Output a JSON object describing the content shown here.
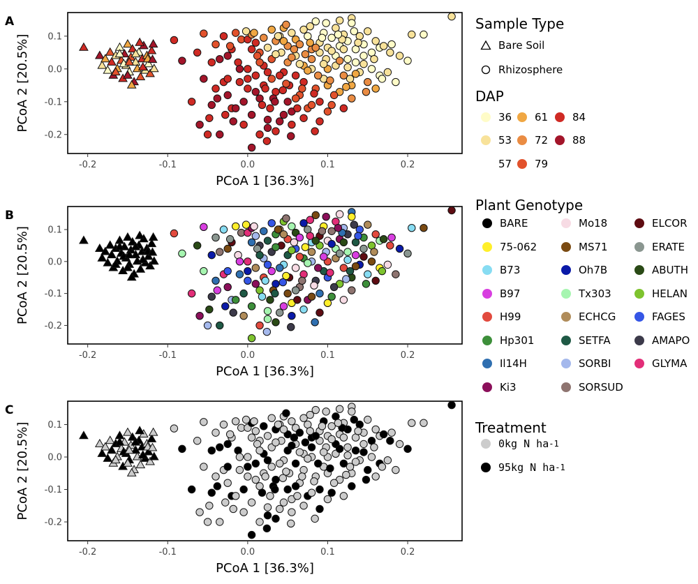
{
  "panels": [
    {
      "letter": "A",
      "coloring": "dap"
    },
    {
      "letter": "B",
      "coloring": "genotype"
    },
    {
      "letter": "C",
      "coloring": "treatment"
    }
  ],
  "legends": {
    "sample_type": {
      "title": "Sample Type",
      "items": [
        {
          "label": "Bare Soil",
          "shape": "triangle"
        },
        {
          "label": "Rhizosphere",
          "shape": "circle"
        }
      ]
    },
    "dap": {
      "title": "DAP",
      "items": [
        {
          "label": "36",
          "color": "#fffcc8"
        },
        {
          "label": "53",
          "color": "#f8e29a"
        },
        {
          "label": "57",
          "color": "#ffffff"
        },
        {
          "label": "61",
          "color": "#f0a743"
        },
        {
          "label": "72",
          "color": "#ea8c43"
        },
        {
          "label": "79",
          "color": "#e2522c"
        },
        {
          "label": "84",
          "color": "#cf2a24"
        },
        {
          "label": "88",
          "color": "#a3152a"
        }
      ]
    },
    "genotype": {
      "title": "Plant Genotype",
      "items": [
        {
          "label": "BARE",
          "color": "#000000"
        },
        {
          "label": "75-062",
          "color": "#ffef2a"
        },
        {
          "label": "B73",
          "color": "#87dcf2"
        },
        {
          "label": "B97",
          "color": "#d83ee0"
        },
        {
          "label": "H99",
          "color": "#e24a3e"
        },
        {
          "label": "Hp301",
          "color": "#3d8f3a"
        },
        {
          "label": "Il14H",
          "color": "#2f6fb0"
        },
        {
          "label": "Ki3",
          "color": "#8b0f5a"
        },
        {
          "label": "Mo18",
          "color": "#f7dbe4"
        },
        {
          "label": "MS71",
          "color": "#7a4a12"
        },
        {
          "label": "Oh7B",
          "color": "#0a1aa8"
        },
        {
          "label": "Tx303",
          "color": "#a6f5b0"
        },
        {
          "label": "ECHCG",
          "color": "#b08c5a"
        },
        {
          "label": "SETFA",
          "color": "#1f5945"
        },
        {
          "label": "SORBI",
          "color": "#a4b8ec"
        },
        {
          "label": "SORSUD",
          "color": "#8e7470"
        },
        {
          "label": "ELCOR",
          "color": "#5e0c12"
        },
        {
          "label": "ERATE",
          "color": "#8a9690"
        },
        {
          "label": "ABUTH",
          "color": "#2a4a16"
        },
        {
          "label": "HELAN",
          "color": "#7ec32e"
        },
        {
          "label": "FAGES",
          "color": "#3556e6"
        },
        {
          "label": "AMAPO",
          "color": "#3c3a4a"
        },
        {
          "label": "GLYMA",
          "color": "#e22e78"
        }
      ]
    },
    "treatment": {
      "title": "Treatment",
      "items": [
        {
          "label_prefix": "0kg N ha",
          "sup": "-1",
          "color": "#cccccc"
        },
        {
          "label_prefix": "95kg N ha",
          "sup": "-1",
          "color": "#000000"
        }
      ]
    }
  },
  "chart_data": {
    "type": "scatter",
    "xlabel": "PCoA 1 [36.3%]",
    "ylabel": "PCoA 2 [20.5%]",
    "xlim": [
      -0.225,
      0.268
    ],
    "ylim": [
      -0.258,
      0.172
    ],
    "xticks": [
      -0.2,
      -0.1,
      0.0,
      0.1,
      0.2
    ],
    "xtick_labels": [
      "-0.2",
      "-0.1",
      "0.0",
      "0.1",
      "0.2"
    ],
    "yticks": [
      -0.2,
      -0.1,
      0.0,
      0.1
    ],
    "ytick_labels": [
      "-0.2",
      "-0.1",
      "0.0",
      "0.1"
    ],
    "bare_soil_points": [
      [
        -0.205,
        0.065
      ],
      [
        -0.185,
        0.04
      ],
      [
        -0.182,
        0.01
      ],
      [
        -0.178,
        0.03
      ],
      [
        -0.175,
        -0.005
      ],
      [
        -0.172,
        0.05
      ],
      [
        -0.17,
        0.02
      ],
      [
        -0.168,
        -0.02
      ],
      [
        -0.165,
        0.04
      ],
      [
        -0.163,
        0.0
      ],
      [
        -0.16,
        0.065
      ],
      [
        -0.158,
        0.025
      ],
      [
        -0.156,
        -0.03
      ],
      [
        -0.154,
        0.045
      ],
      [
        -0.152,
        0.01
      ],
      [
        -0.15,
        0.075
      ],
      [
        -0.148,
        -0.01
      ],
      [
        -0.146,
        0.035
      ],
      [
        -0.144,
        0.06
      ],
      [
        -0.142,
        -0.04
      ],
      [
        -0.14,
        0.02
      ],
      [
        -0.138,
        0.0
      ],
      [
        -0.136,
        0.05
      ],
      [
        -0.134,
        -0.025
      ],
      [
        -0.132,
        0.03
      ],
      [
        -0.13,
        0.07
      ],
      [
        -0.128,
        -0.005
      ],
      [
        -0.126,
        0.04
      ],
      [
        -0.124,
        0.015
      ],
      [
        -0.122,
        -0.015
      ],
      [
        -0.12,
        0.055
      ],
      [
        -0.118,
        0.075
      ],
      [
        -0.117,
        0.0
      ],
      [
        -0.145,
        -0.05
      ],
      [
        -0.155,
        0.015
      ],
      [
        -0.165,
        -0.01
      ],
      [
        -0.135,
        0.08
      ],
      [
        -0.15,
        -0.02
      ],
      [
        -0.14,
        0.045
      ],
      [
        -0.125,
        0.03
      ],
      [
        -0.16,
        0.045
      ],
      [
        -0.148,
        0.02
      ],
      [
        -0.131,
        0.005
      ],
      [
        -0.119,
        0.028
      ]
    ],
    "rhizosphere_points": [
      [
        -0.092,
        0.088
      ],
      [
        -0.082,
        0.025
      ],
      [
        -0.063,
        0.05
      ],
      [
        -0.055,
        0.108
      ],
      [
        -0.045,
        0.02
      ],
      [
        -0.04,
        0.075
      ],
      [
        -0.03,
        0.1
      ],
      [
        -0.025,
        0.04
      ],
      [
        -0.02,
        0.06
      ],
      [
        -0.015,
        0.11
      ],
      [
        -0.012,
        0.02
      ],
      [
        -0.008,
        0.09
      ],
      [
        0.0,
        0.09
      ],
      [
        0.005,
        0.105
      ],
      [
        0.01,
        0.08
      ],
      [
        0.015,
        0.05
      ],
      [
        0.02,
        0.095
      ],
      [
        0.025,
        0.065
      ],
      [
        0.03,
        0.12
      ],
      [
        0.035,
        0.085
      ],
      [
        0.04,
        0.1
      ],
      [
        0.045,
        0.125
      ],
      [
        0.05,
        0.07
      ],
      [
        0.055,
        0.11
      ],
      [
        0.06,
        0.09
      ],
      [
        0.065,
        0.075
      ],
      [
        0.07,
        0.12
      ],
      [
        0.075,
        0.1
      ],
      [
        0.08,
        0.06
      ],
      [
        0.085,
        0.145
      ],
      [
        0.09,
        0.08
      ],
      [
        0.095,
        0.11
      ],
      [
        0.1,
        0.065
      ],
      [
        0.105,
        0.095
      ],
      [
        0.11,
        0.125
      ],
      [
        0.115,
        0.07
      ],
      [
        0.12,
        0.105
      ],
      [
        0.125,
        0.085
      ],
      [
        0.13,
        0.155
      ],
      [
        0.135,
        0.06
      ],
      [
        0.14,
        0.1
      ],
      [
        0.145,
        0.075
      ],
      [
        0.15,
        0.115
      ],
      [
        0.155,
        0.05
      ],
      [
        0.16,
        0.085
      ],
      [
        0.165,
        0.065
      ],
      [
        0.17,
        0.07
      ],
      [
        0.18,
        0.075
      ],
      [
        0.19,
        0.04
      ],
      [
        0.2,
        0.025
      ],
      [
        0.205,
        0.105
      ],
      [
        0.22,
        0.105
      ],
      [
        0.255,
        0.16
      ],
      [
        0.13,
        0.14
      ],
      [
        0.115,
        0.148
      ],
      [
        -0.035,
        0.03
      ],
      [
        -0.03,
        -0.04
      ],
      [
        -0.025,
        -0.08
      ],
      [
        -0.02,
        -0.12
      ],
      [
        -0.018,
        -0.16
      ],
      [
        -0.01,
        -0.04
      ],
      [
        -0.005,
        -0.1
      ],
      [
        0.0,
        -0.06
      ],
      [
        0.005,
        -0.14
      ],
      [
        0.01,
        -0.02
      ],
      [
        0.015,
        -0.09
      ],
      [
        0.02,
        -0.05
      ],
      [
        0.025,
        -0.18
      ],
      [
        0.028,
        -0.12
      ],
      [
        0.03,
        -0.03
      ],
      [
        0.035,
        -0.07
      ],
      [
        0.04,
        -0.16
      ],
      [
        0.045,
        -0.01
      ],
      [
        0.05,
        -0.1
      ],
      [
        0.052,
        -0.05
      ],
      [
        0.055,
        -0.13
      ],
      [
        0.06,
        -0.02
      ],
      [
        0.065,
        -0.08
      ],
      [
        0.07,
        -0.04
      ],
      [
        0.075,
        -0.12
      ],
      [
        0.08,
        0.0
      ],
      [
        0.085,
        -0.06
      ],
      [
        0.09,
        -0.1
      ],
      [
        0.095,
        -0.03
      ],
      [
        0.1,
        -0.05
      ],
      [
        0.105,
        -0.11
      ],
      [
        0.11,
        0.01
      ],
      [
        0.115,
        -0.07
      ],
      [
        0.12,
        -0.02
      ],
      [
        0.125,
        0.03
      ],
      [
        0.13,
        -0.05
      ],
      [
        0.135,
        0.02
      ],
      [
        0.14,
        -0.01
      ],
      [
        0.145,
        0.04
      ],
      [
        0.15,
        -0.04
      ],
      [
        0.155,
        0.0
      ],
      [
        0.16,
        -0.06
      ],
      [
        0.165,
        -0.02
      ],
      [
        0.175,
        -0.01
      ],
      [
        0.185,
        -0.04
      ],
      [
        -0.07,
        -0.1
      ],
      [
        -0.06,
        -0.17
      ],
      [
        -0.05,
        -0.2
      ],
      [
        -0.045,
        -0.11
      ],
      [
        -0.04,
        -0.06
      ],
      [
        -0.035,
        -0.2
      ],
      [
        -0.025,
        -0.03
      ],
      [
        -0.015,
        -0.12
      ],
      [
        -0.005,
        -0.17
      ],
      [
        0.005,
        -0.24
      ],
      [
        0.015,
        -0.2
      ],
      [
        0.025,
        -0.155
      ],
      [
        0.035,
        -0.19
      ],
      [
        0.045,
        -0.14
      ],
      [
        0.055,
        -0.17
      ],
      [
        0.06,
        -0.09
      ],
      [
        0.07,
        -0.15
      ],
      [
        0.08,
        -0.11
      ],
      [
        0.09,
        -0.16
      ],
      [
        0.1,
        -0.13
      ],
      [
        0.12,
        -0.12
      ],
      [
        0.13,
        -0.09
      ],
      [
        0.0,
        0.0
      ],
      [
        0.01,
        -0.07
      ],
      [
        0.02,
        0.01
      ],
      [
        0.03,
        0.03
      ],
      [
        0.04,
        -0.02
      ],
      [
        0.05,
        0.02
      ],
      [
        0.06,
        0.04
      ],
      [
        0.07,
        0.01
      ],
      [
        0.08,
        0.03
      ],
      [
        0.09,
        0.05
      ],
      [
        0.1,
        0.0
      ],
      [
        0.11,
        0.04
      ],
      [
        0.12,
        0.06
      ],
      [
        -0.01,
        0.0
      ],
      [
        0.0,
        -0.03
      ],
      [
        0.012,
        0.04
      ],
      [
        0.022,
        -0.06
      ],
      [
        0.032,
        -0.09
      ],
      [
        0.042,
        0.05
      ],
      [
        0.048,
        -0.045
      ],
      [
        0.058,
        0.06
      ],
      [
        0.068,
        -0.06
      ],
      [
        0.078,
        0.08
      ],
      [
        0.088,
        -0.02
      ],
      [
        0.098,
        0.03
      ],
      [
        0.108,
        -0.08
      ],
      [
        0.118,
        0.09
      ],
      [
        0.128,
        -0.03
      ],
      [
        0.138,
        0.08
      ],
      [
        0.148,
        -0.07
      ],
      [
        0.158,
        0.03
      ],
      [
        0.168,
        -0.03
      ],
      [
        0.178,
        0.05
      ],
      [
        -0.055,
        -0.03
      ],
      [
        -0.048,
        -0.15
      ],
      [
        -0.038,
        -0.09
      ],
      [
        -0.028,
        -0.14
      ],
      [
        -0.022,
        0.07
      ],
      [
        0.018,
        -0.11
      ],
      [
        0.038,
        0.1
      ],
      [
        0.062,
        -0.12
      ],
      [
        0.072,
        0.045
      ],
      [
        0.083,
        -0.075
      ],
      [
        0.093,
        0.095
      ],
      [
        0.103,
        -0.035
      ],
      [
        0.113,
        0.105
      ],
      [
        0.123,
        -0.055
      ],
      [
        0.133,
        0.115
      ],
      [
        0.005,
        0.06
      ],
      [
        0.015,
        0.02
      ],
      [
        0.025,
        -0.01
      ],
      [
        0.035,
        0.045
      ],
      [
        0.045,
        0.085
      ],
      [
        0.055,
        0.035
      ],
      [
        0.065,
        0.015
      ],
      [
        0.075,
        -0.005
      ],
      [
        0.085,
        0.065
      ],
      [
        0.095,
        0.015
      ],
      [
        0.105,
        0.055
      ],
      [
        0.115,
        0.025
      ],
      [
        0.125,
        0.005
      ],
      [
        0.135,
        -0.015
      ],
      [
        0.145,
        0.015
      ],
      [
        -0.002,
        0.115
      ],
      [
        0.008,
        0.11
      ],
      [
        0.048,
        0.135
      ],
      [
        0.078,
        0.13
      ],
      [
        0.098,
        0.14
      ],
      [
        0.024,
        -0.22
      ],
      [
        0.054,
        -0.205
      ],
      [
        0.084,
        -0.19
      ],
      [
        0.034,
        -0.1
      ],
      [
        0.044,
        -0.065
      ]
    ],
    "color_rules": {
      "dap_tiers": [
        [
          0.12,
          "pale"
        ],
        [
          0.05,
          "light"
        ],
        [
          0.0,
          "orange"
        ],
        [
          -1,
          "red"
        ]
      ],
      "treatment_colors": [
        "#cccccc",
        "#000000"
      ]
    }
  }
}
